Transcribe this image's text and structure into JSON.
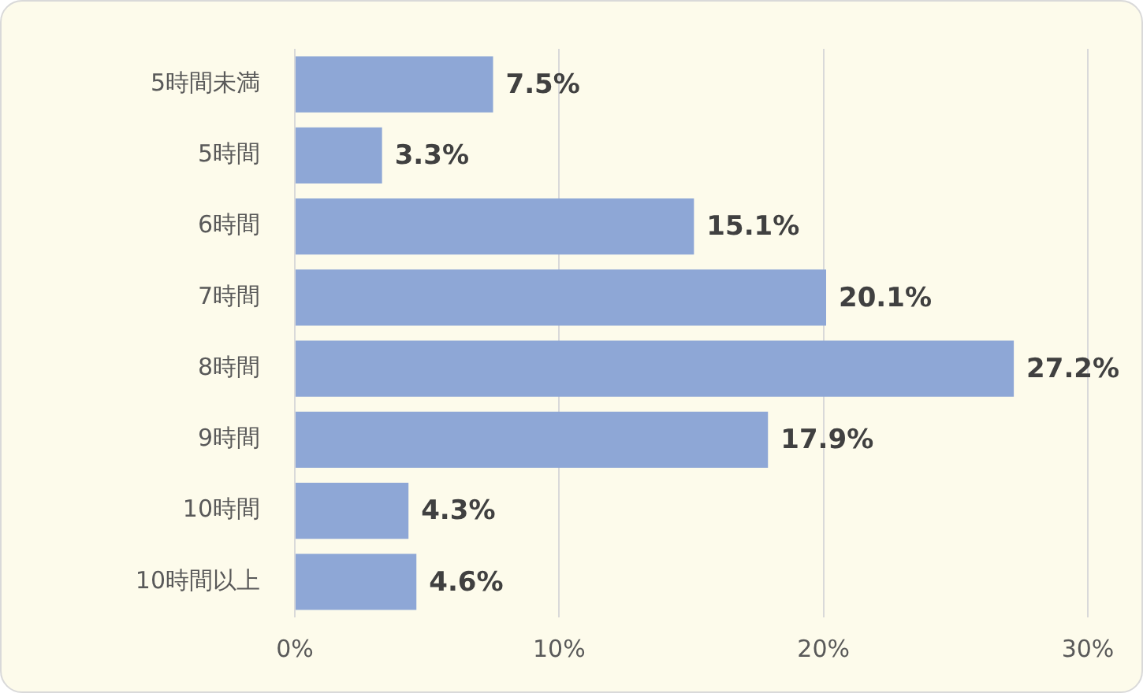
{
  "chart_data": {
    "type": "bar",
    "orientation": "horizontal",
    "categories": [
      "5時間未満",
      "5時間",
      "6時間",
      "7時間",
      "8時間",
      "9時間",
      "10時間",
      "10時間以上"
    ],
    "values": [
      7.5,
      3.3,
      15.1,
      20.1,
      27.2,
      17.9,
      4.3,
      4.6
    ],
    "value_labels": [
      "7.5%",
      "3.3%",
      "15.1%",
      "20.1%",
      "27.2%",
      "17.9%",
      "4.3%",
      "4.6%"
    ],
    "color": "#8ea7d6",
    "xlim": [
      0,
      30
    ],
    "xticks": [
      {
        "value": 0,
        "label": "0%"
      },
      {
        "value": 10,
        "label": "10%"
      },
      {
        "value": 20,
        "label": "20%"
      },
      {
        "value": 30,
        "label": "30%"
      }
    ],
    "grid": "x"
  }
}
